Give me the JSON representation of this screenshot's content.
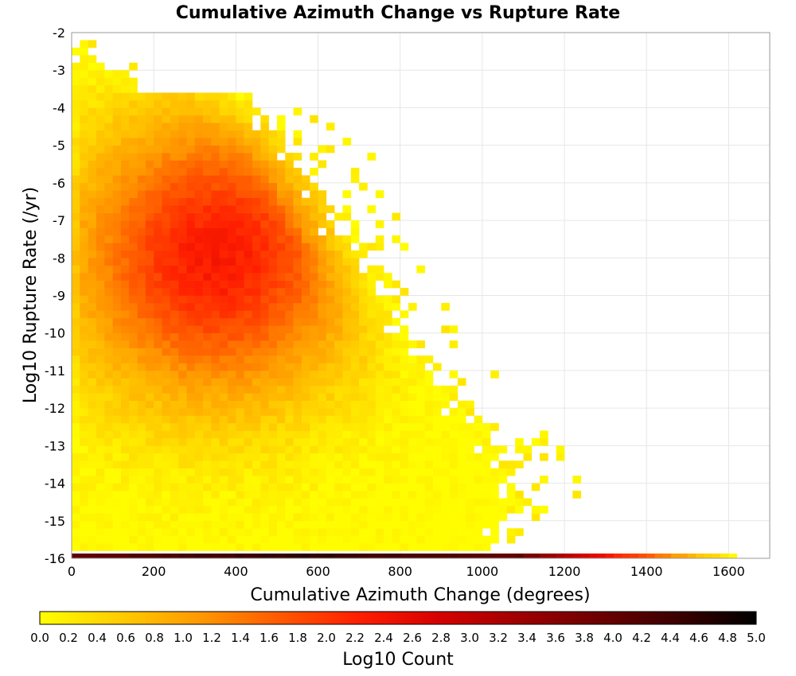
{
  "chart_data": {
    "type": "heatmap",
    "title": "Cumulative Azimuth Change vs Rupture Rate",
    "xlabel": "Cumulative Azimuth Change (degrees)",
    "ylabel": "Log10 Rupture Rate (/yr)",
    "xlim": [
      0,
      1700
    ],
    "ylim": [
      -16,
      -2
    ],
    "x_ticks": [
      "0",
      "200",
      "400",
      "600",
      "800",
      "1000",
      "1200",
      "1400",
      "1600"
    ],
    "y_ticks": [
      "-2",
      "-3",
      "-4",
      "-5",
      "-6",
      "-7",
      "-8",
      "-9",
      "-10",
      "-11",
      "-12",
      "-13",
      "-14",
      "-15",
      "-16"
    ],
    "x_bin_width": 20,
    "y_bin_height": 0.2,
    "grid": true,
    "colorbar": {
      "label": "Log10 Count",
      "range": [
        0.0,
        5.0
      ],
      "ticks": [
        "0.0",
        "0.2",
        "0.4",
        "0.6",
        "0.8",
        "1.0",
        "1.2",
        "1.4",
        "1.6",
        "1.8",
        "2.0",
        "2.2",
        "2.4",
        "2.6",
        "2.8",
        "3.0",
        "3.2",
        "3.4",
        "3.6",
        "3.8",
        "4.0",
        "4.2",
        "4.4",
        "4.6",
        "4.8",
        "5.0"
      ],
      "colors": [
        "#ffff00",
        "#ffcc00",
        "#ff9900",
        "#ff5a00",
        "#ff1e00",
        "#d70000",
        "#a00000",
        "#6e0000",
        "#3c0000",
        "#000000"
      ]
    },
    "description_of_distribution": {
      "peak_log10_count": 2.3,
      "peak_location": {
        "x": 350,
        "y": -8.0
      },
      "bottom_row_y": -16,
      "bottom_row_max_x": 1620,
      "bottom_row_peak_log10_count": 4.6
    }
  },
  "colors": {
    "background": "#ffffff",
    "plot_border": "#999999",
    "grid": "#e6e6e6"
  }
}
